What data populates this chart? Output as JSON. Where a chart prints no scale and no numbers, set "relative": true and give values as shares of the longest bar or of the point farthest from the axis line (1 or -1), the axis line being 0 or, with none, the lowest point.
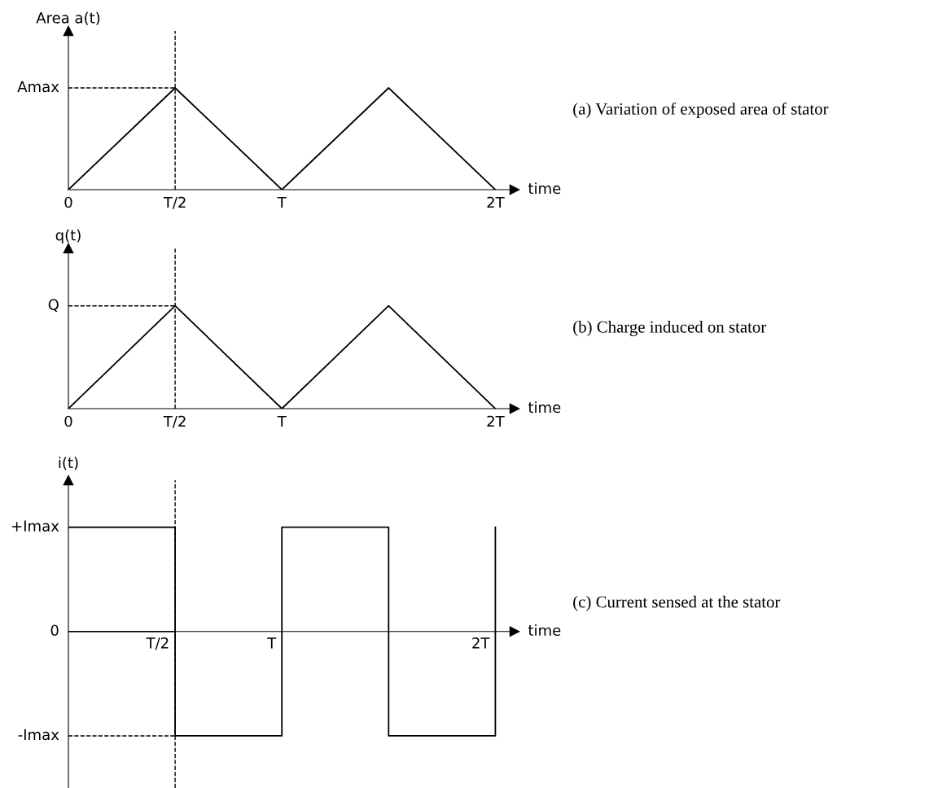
{
  "chart_data": [
    {
      "type": "line",
      "ylabel": "Area a(t)",
      "xlabel": "time",
      "relative": true,
      "categories": [
        "0",
        "T/2",
        "T",
        null,
        "2T"
      ],
      "series": [
        {
          "color": "#000000",
          "values": [
            0,
            1,
            0,
            1,
            0
          ]
        }
      ],
      "ref_lines": [
        {
          "axis": "x",
          "value": "T/2",
          "line_style": "dashed",
          "color": "#000000"
        },
        {
          "axis": "y",
          "value": 1,
          "label": "Amax",
          "line_style": "dashed",
          "color": "#000000"
        }
      ],
      "annotations": [
        "(a) Variation of exposed area of stator"
      ],
      "grid": false,
      "line_style": "solid",
      "marker": "none"
    },
    {
      "type": "line",
      "ylabel": "q(t)",
      "xlabel": "time",
      "relative": true,
      "categories": [
        "0",
        "T/2",
        "T",
        null,
        "2T"
      ],
      "series": [
        {
          "color": "#000000",
          "values": [
            0,
            1,
            0,
            1,
            0
          ]
        }
      ],
      "ref_lines": [
        {
          "axis": "x",
          "value": "T/2",
          "line_style": "dashed",
          "color": "#000000"
        },
        {
          "axis": "y",
          "value": 1,
          "label": "Q",
          "line_style": "dashed",
          "color": "#000000"
        }
      ],
      "annotations": [
        "(b) Charge induced on stator"
      ],
      "grid": false,
      "line_style": "solid",
      "marker": "none"
    },
    {
      "type": "step",
      "ylabel": "i(t)",
      "xlabel": "time",
      "relative": true,
      "categories": [
        null,
        "T/2",
        "T",
        null,
        "2T"
      ],
      "series": [
        {
          "color": "#000000",
          "values": [
            1,
            -1,
            1,
            -1,
            1
          ]
        }
      ],
      "ref_lines": [
        {
          "axis": "x",
          "value": "T/2",
          "line_style": "dashed",
          "color": "#000000"
        },
        {
          "axis": "y",
          "value": 1,
          "label": "+Imax",
          "line_style": "solid",
          "color": "#000000"
        },
        {
          "axis": "y",
          "value": 0,
          "label": "0",
          "line_style": "solid",
          "color": "#000000"
        },
        {
          "axis": "y",
          "value": -1,
          "label": "-Imax",
          "line_style": "dashed",
          "color": "#000000"
        }
      ],
      "annotations": [
        "(c) Current sensed at the stator"
      ],
      "grid": false,
      "line_style": "solid",
      "marker": "none"
    }
  ]
}
